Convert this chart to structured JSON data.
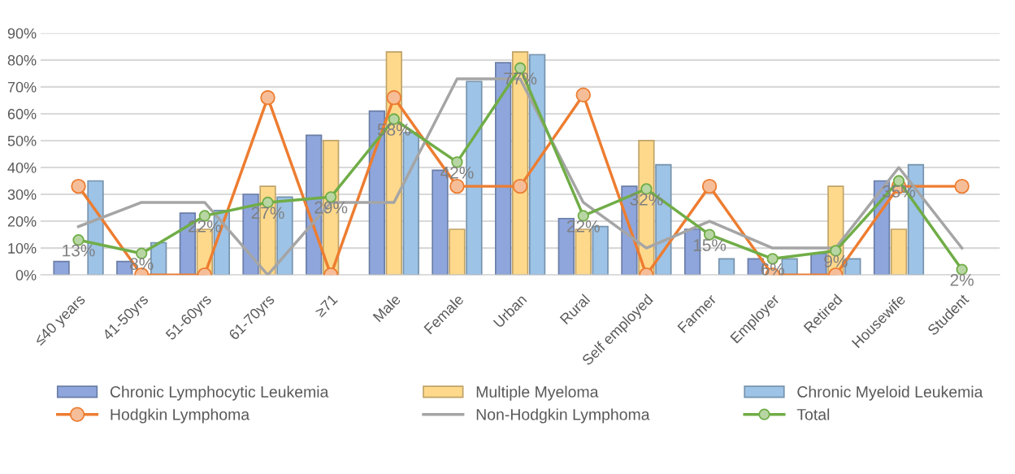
{
  "chart_data": {
    "type": "bar",
    "categories": [
      "≤40 years",
      "41-50yrs",
      "51-60yrs",
      "61-70yrs",
      "≥71",
      "Male",
      "Female",
      "Urban",
      "Rural",
      "Self employed",
      "Farmer",
      "Employer",
      "Retired",
      "Housewife",
      "Student"
    ],
    "series": [
      {
        "name": "Chronic Lymphocytic Leukemia",
        "color": "#8ea6dc",
        "values": [
          5,
          5,
          23,
          30,
          52,
          61,
          39,
          79,
          21,
          33,
          17,
          6,
          8,
          35,
          null
        ]
      },
      {
        "name": "Multiple Myeloma",
        "color": "#ffd98b",
        "values": [
          null,
          null,
          17,
          33,
          50,
          83,
          17,
          83,
          17,
          50,
          null,
          null,
          33,
          17,
          null
        ]
      },
      {
        "name": "Chronic Myeloid Leukemia",
        "color": "#9dc3e6",
        "values": [
          35,
          12,
          24,
          29,
          null,
          53,
          72,
          82,
          18,
          41,
          6,
          6,
          6,
          41,
          null
        ]
      },
      {
        "name": "Hodgkin Lymphoma",
        "type": "line",
        "color": "#ed7d31",
        "marker": "circle",
        "values": [
          33,
          0,
          0,
          66,
          0,
          66,
          33,
          33,
          67,
          0,
          33,
          0,
          0,
          33,
          33
        ]
      },
      {
        "name": "Non-Hodgkin Lymphoma",
        "type": "line",
        "color": "#a5a5a5",
        "values": [
          18,
          27,
          27,
          0,
          27,
          27,
          73,
          73,
          27,
          10,
          20,
          10,
          10,
          40,
          10
        ]
      },
      {
        "name": "Total",
        "type": "line",
        "color": "#70ad47",
        "marker": "circle",
        "values": [
          13,
          8,
          22,
          27,
          29,
          58,
          42,
          77,
          22,
          32,
          15,
          6,
          9,
          35,
          2
        ],
        "value_labels": [
          "13%",
          "8%",
          "22%",
          "27%",
          "29%",
          "58%",
          "42%",
          "77%",
          "22%",
          "32%",
          "15%",
          "6%",
          "9%",
          "35%",
          "2%"
        ]
      }
    ],
    "ylim": [
      0,
      90
    ],
    "yticks": [
      {
        "value": 0,
        "label": "0%"
      },
      {
        "value": 10,
        "label": "10%"
      },
      {
        "value": 20,
        "label": "20%"
      },
      {
        "value": 30,
        "label": "30%"
      },
      {
        "value": 40,
        "label": "40%"
      },
      {
        "value": 50,
        "label": "50%"
      },
      {
        "value": 60,
        "label": "60%"
      },
      {
        "value": 70,
        "label": "70%"
      },
      {
        "value": 80,
        "label": "80%"
      },
      {
        "value": 90,
        "label": "90%"
      }
    ],
    "grid": "y",
    "legend": "bottom"
  }
}
